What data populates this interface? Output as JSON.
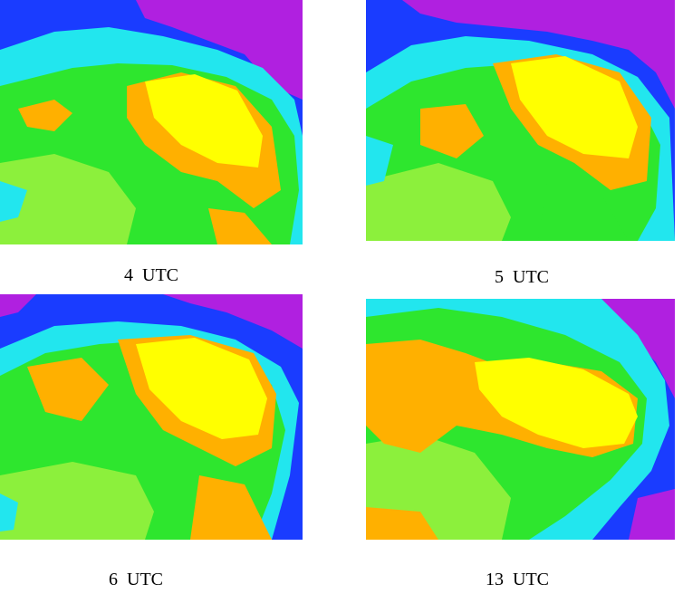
{
  "panels": [
    {
      "id": "p1",
      "caption": "4  UTC"
    },
    {
      "id": "p2",
      "caption": "5  UTC"
    },
    {
      "id": "p3",
      "caption": "6  UTC"
    },
    {
      "id": "p4",
      "caption": "13  UTC"
    }
  ],
  "palette": {
    "violet": "#b020e0",
    "blue": "#1a3cff",
    "cyan": "#22e6ee",
    "teal": "#28e0a8",
    "green": "#2ee62e",
    "lime": "#8cf03c",
    "orange": "#ffb000",
    "yellow": "#ffff00"
  }
}
